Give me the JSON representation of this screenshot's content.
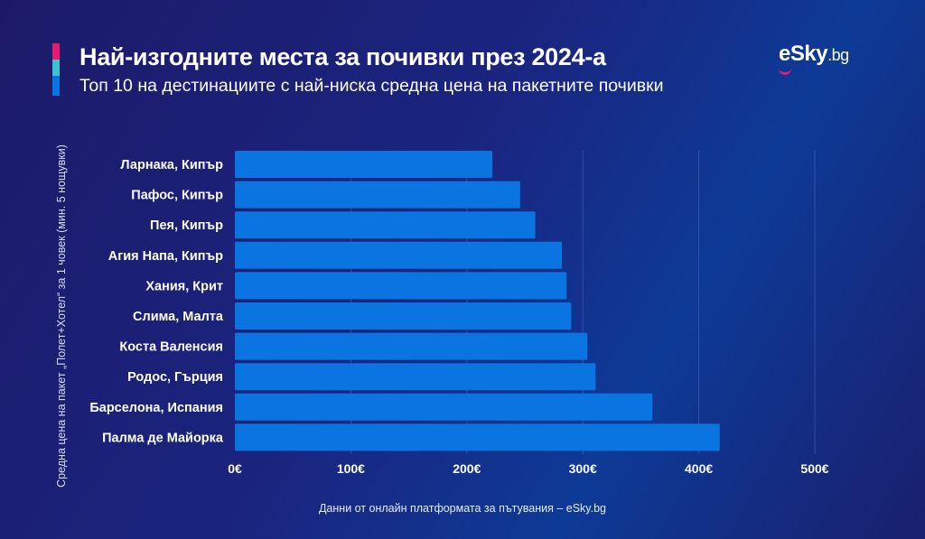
{
  "header": {
    "title": "Най-изгодните места за почивки през 2024-а",
    "subtitle": "Топ 10 на дестинациите с най-ниска средна цена на пакетните почивки",
    "logo_main": "eSky",
    "logo_suffix": ".bg",
    "accent_colors": [
      "#e8186e",
      "#3fc1d4",
      "#0a74e0"
    ]
  },
  "footer": "Данни от онлайн платформата за пътувания – eSky.bg",
  "colors": {
    "bar": "#0a74e0",
    "grid": "#5a6cc0"
  },
  "chart_data": {
    "type": "bar",
    "orientation": "horizontal",
    "title": "Най-изгодните места за почивки през 2024-а",
    "subtitle": "Топ 10 на дестинациите с най-ниска средна цена на пакетните почивки",
    "ylabel": "Средна цена на пакет „Полет+Хотел“ за 1 човек (мин. 5 нощувки)",
    "xlabel": "",
    "categories": [
      "Ларнака, Кипър",
      "Пафос, Кипър",
      "Пея, Кипър",
      "Агия Напа, Кипър",
      "Хания, Крит",
      "Слима, Малта",
      "Коста Валенсия",
      "Родос, Гърция",
      "Барселона, Испания",
      "Палма де Майорка"
    ],
    "values": [
      222,
      246,
      259,
      282,
      286,
      290,
      304,
      311,
      360,
      418
    ],
    "xlim": [
      0,
      500
    ],
    "xticks": [
      0,
      100,
      200,
      300,
      400,
      500
    ],
    "xtick_labels": [
      "0€",
      "100€",
      "200€",
      "300€",
      "400€",
      "500€"
    ],
    "grid": true
  }
}
